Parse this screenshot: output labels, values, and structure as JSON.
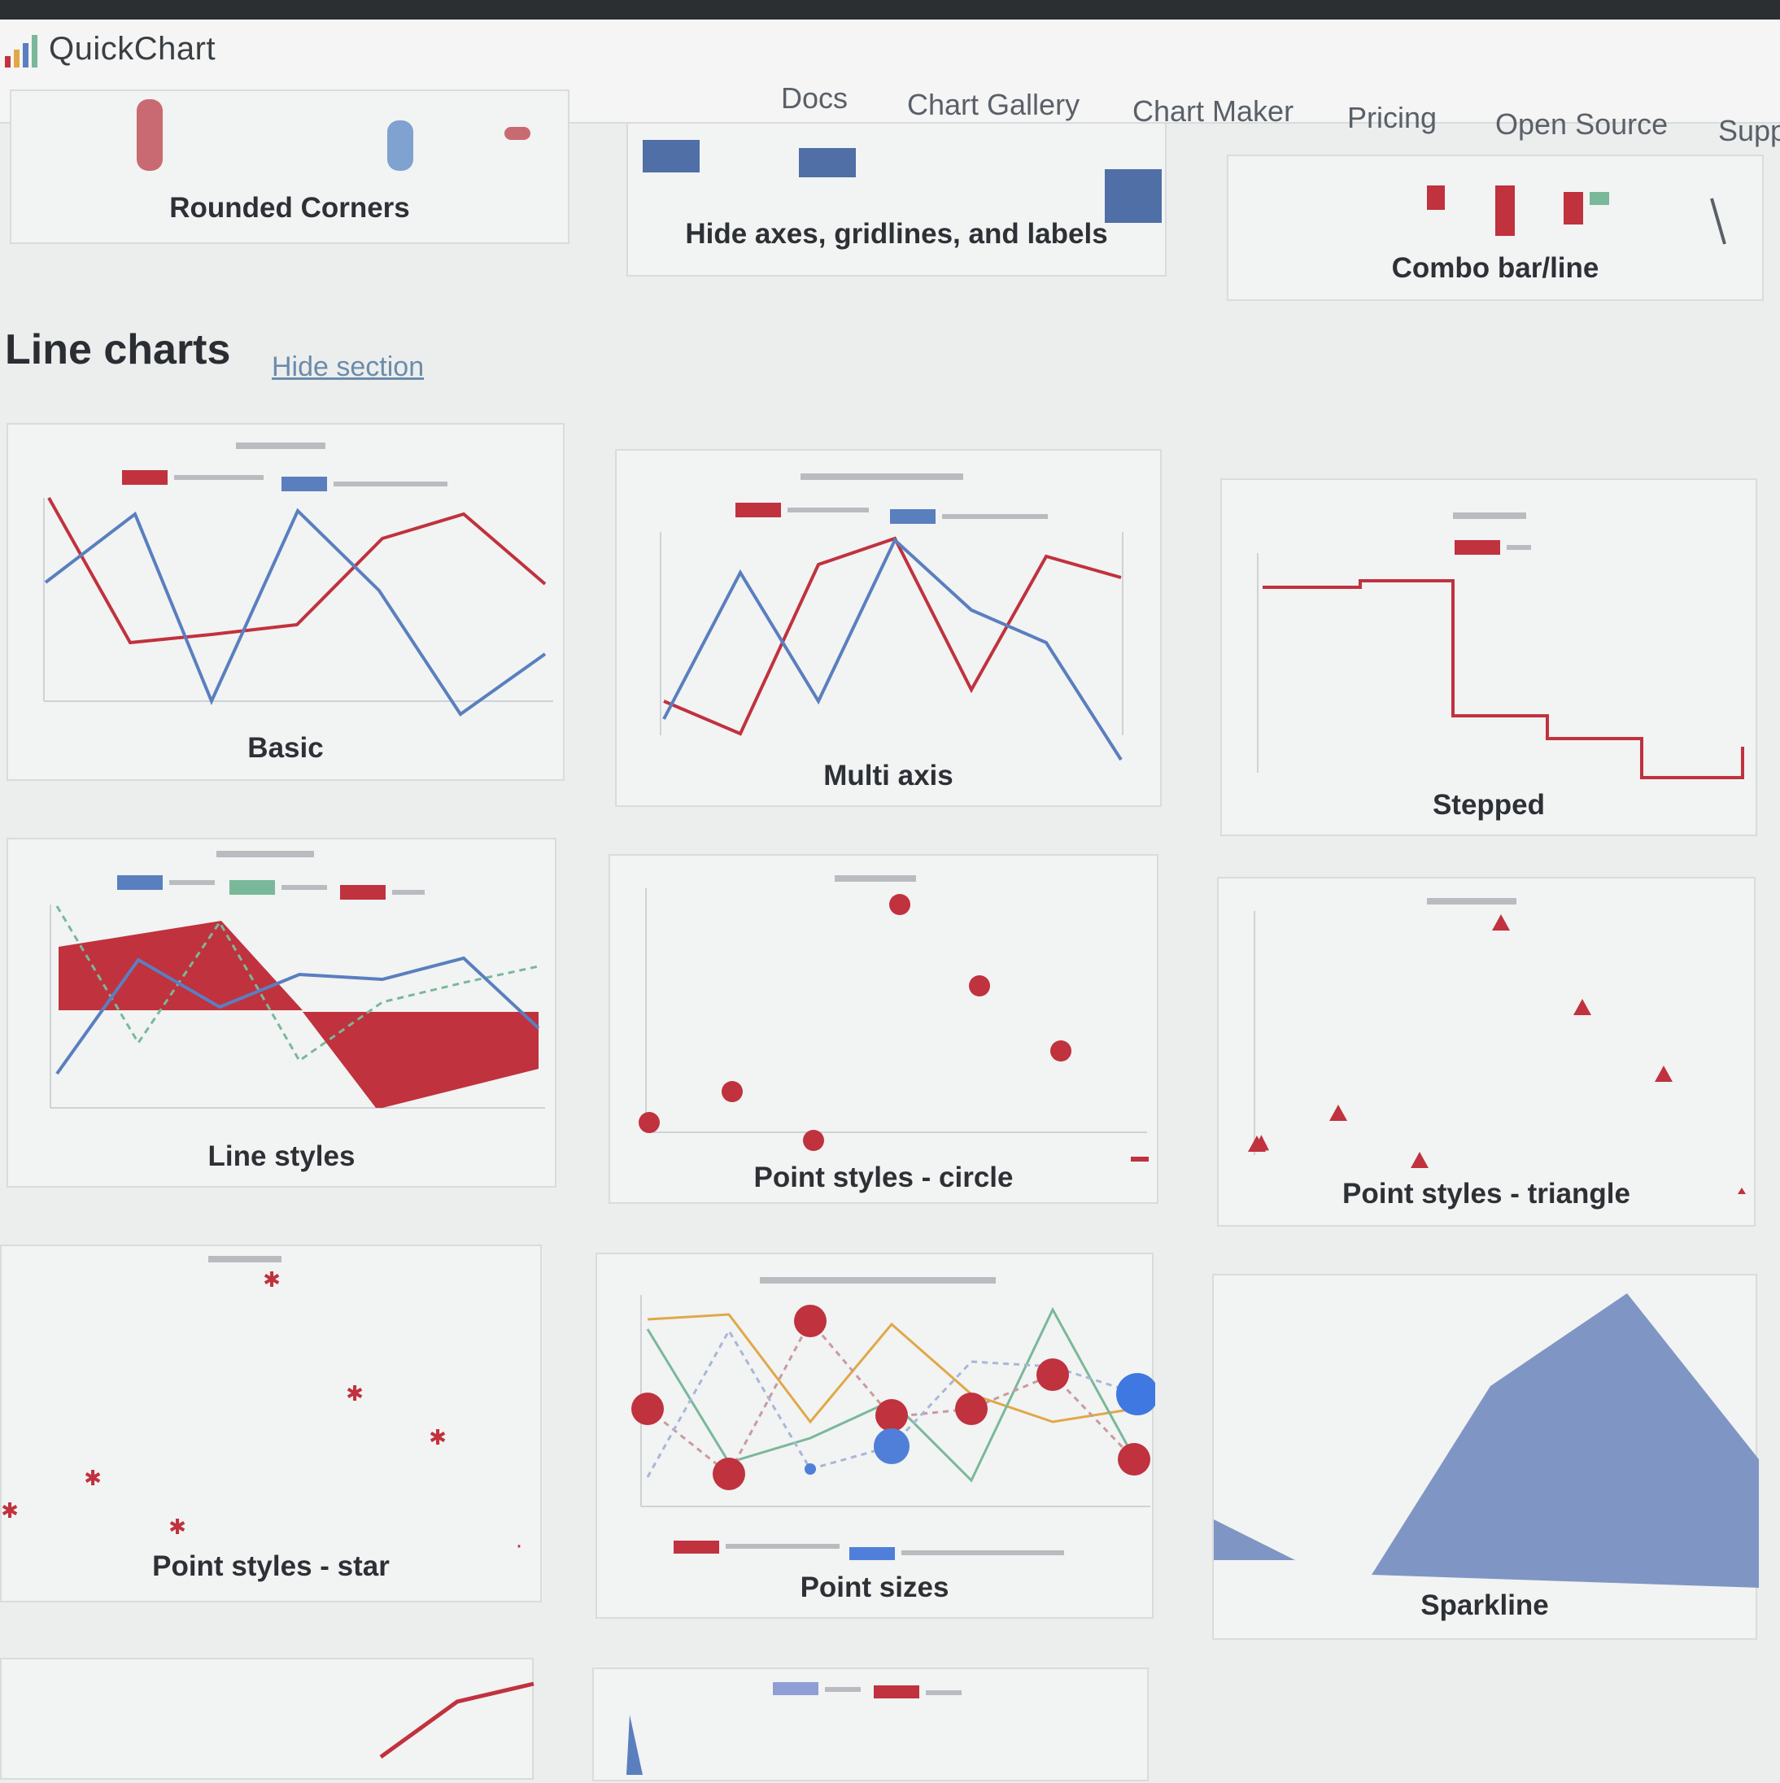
{
  "app": {
    "name": "QuickChart"
  },
  "nav": {
    "items": [
      "Docs",
      "Chart Gallery",
      "Chart Maker",
      "Pricing",
      "Open Source",
      "Supp"
    ]
  },
  "top_row": {
    "cards": [
      {
        "title": "Rounded Corners"
      },
      {
        "title": "Hide axes, gridlines, and labels"
      },
      {
        "title": "Combo bar/line"
      }
    ]
  },
  "section": {
    "title": "Line charts",
    "hide_link": "Hide section"
  },
  "cards": [
    {
      "id": "basic",
      "title": "Basic"
    },
    {
      "id": "multi-axis",
      "title": "Multi axis"
    },
    {
      "id": "stepped",
      "title": "Stepped"
    },
    {
      "id": "line-styles",
      "title": "Line styles"
    },
    {
      "id": "point-circle",
      "title": "Point styles - circle"
    },
    {
      "id": "point-triangle",
      "title": "Point styles - triangle"
    },
    {
      "id": "point-star",
      "title": "Point styles - star"
    },
    {
      "id": "point-sizes",
      "title": "Point sizes"
    },
    {
      "id": "sparkline",
      "title": "Sparkline"
    }
  ],
  "colors": {
    "red": "#c0323e",
    "blue": "#5a7fbf",
    "green": "#7ab89a",
    "orange": "#e0a848",
    "sparkline": "#7f96c4"
  }
}
